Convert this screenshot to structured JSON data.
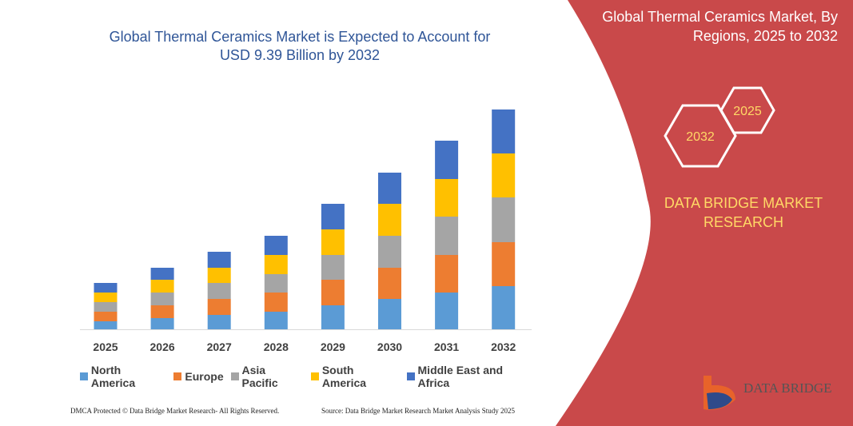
{
  "chart_data": {
    "type": "bar",
    "stacked": true,
    "title": "Global Thermal Ceramics Market is Expected to Account for USD 9.39 Billion by 2032",
    "categories": [
      "2025",
      "2026",
      "2027",
      "2028",
      "2029",
      "2030",
      "2031",
      "2032"
    ],
    "series": [
      {
        "name": "North America",
        "color": "#5b9bd5",
        "values": [
          10,
          14,
          18,
          22,
          30,
          38,
          46,
          54
        ]
      },
      {
        "name": "Europe",
        "color": "#ed7d31",
        "values": [
          12,
          16,
          20,
          24,
          32,
          39,
          47,
          55
        ]
      },
      {
        "name": "Asia Pacific",
        "color": "#a5a5a5",
        "values": [
          12,
          16,
          20,
          23,
          31,
          40,
          48,
          56
        ]
      },
      {
        "name": "South America",
        "color": "#ffc000",
        "values": [
          12,
          16,
          19,
          24,
          32,
          40,
          47,
          55
        ]
      },
      {
        "name": "Middle East and Africa",
        "color": "#4472c4",
        "values": [
          12,
          15,
          20,
          24,
          32,
          39,
          48,
          55
        ]
      }
    ]
  },
  "panel": {
    "title": "Global Thermal Ceramics Market, By Regions, 2025 to 2032",
    "hex_small": "2025",
    "hex_large": "2032",
    "brand": "DATA BRIDGE MARKET RESEARCH",
    "logo": "DATA BRIDGE"
  },
  "footer": {
    "left": "DMCA Protected © Data Bridge Market Research- All Rights Reserved.",
    "right": "Source: Data Bridge Market Research Market Analysis Study 2025"
  }
}
